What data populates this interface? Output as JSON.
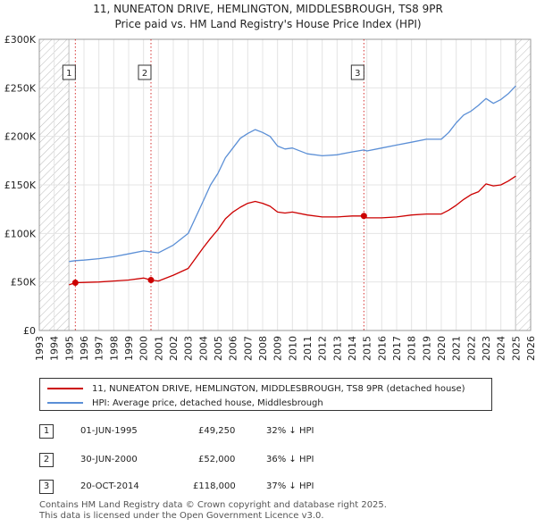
{
  "title_line1": "11, NUNEATON DRIVE, HEMLINGTON, MIDDLESBROUGH, TS8 9PR",
  "title_line2": "Price paid vs. HM Land Registry's House Price Index (HPI)",
  "colors": {
    "price": "#cc0000",
    "hpi": "#5b8fd6",
    "hatch": "#bbbbbb",
    "marker": "#cc0000"
  },
  "legend": {
    "price_label": "11, NUNEATON DRIVE, HEMLINGTON, MIDDLESBROUGH, TS8 9PR (detached house)",
    "hpi_label": "HPI: Average price, detached house, Middlesbrough"
  },
  "transactions": [
    {
      "num": "1",
      "date": "01-JUN-1995",
      "price": "£49,250",
      "hpi_diff": "32% ↓ HPI"
    },
    {
      "num": "2",
      "date": "30-JUN-2000",
      "price": "£52,000",
      "hpi_diff": "36% ↓ HPI"
    },
    {
      "num": "3",
      "date": "20-OCT-2014",
      "price": "£118,000",
      "hpi_diff": "37% ↓ HPI"
    }
  ],
  "footer": {
    "line1": "Contains HM Land Registry data © Crown copyright and database right 2025.",
    "line2": "This data is licensed under the Open Government Licence v3.0."
  },
  "chart_data": {
    "type": "line",
    "title": "11, NUNEATON DRIVE, HEMLINGTON, MIDDLESBROUGH, TS8 9PR",
    "subtitle": "Price paid vs. HM Land Registry's House Price Index (HPI)",
    "xlabel": "",
    "ylabel": "",
    "xlim": [
      1993,
      2026
    ],
    "ylim": [
      0,
      300000
    ],
    "x_ticks": [
      1993,
      1994,
      1995,
      1996,
      1997,
      1998,
      1999,
      2000,
      2001,
      2002,
      2003,
      2004,
      2005,
      2006,
      2007,
      2008,
      2009,
      2010,
      2011,
      2012,
      2013,
      2014,
      2015,
      2016,
      2017,
      2018,
      2019,
      2020,
      2021,
      2022,
      2023,
      2024,
      2025,
      2026
    ],
    "y_ticks": [
      {
        "value": 0,
        "label": "£0"
      },
      {
        "value": 50000,
        "label": "£50K"
      },
      {
        "value": 100000,
        "label": "£100K"
      },
      {
        "value": 150000,
        "label": "£150K"
      },
      {
        "value": 200000,
        "label": "£200K"
      },
      {
        "value": 250000,
        "label": "£250K"
      },
      {
        "value": 300000,
        "label": "£300K"
      }
    ],
    "grid": true,
    "hatched_ranges": [
      [
        1993,
        1995.0
      ],
      [
        2025.0,
        2026
      ]
    ],
    "series": [
      {
        "name": "11, NUNEATON DRIVE, HEMLINGTON, MIDDLESBROUGH, TS8 9PR (detached house)",
        "x": [
          1995.0,
          1995.42,
          1996.0,
          1997.0,
          1998.0,
          1999.0,
          2000.0,
          2000.5,
          2001.0,
          2002.0,
          2003.0,
          2004.0,
          2004.5,
          2005.0,
          2005.5,
          2006.0,
          2006.5,
          2007.0,
          2007.5,
          2008.0,
          2008.5,
          2009.0,
          2009.5,
          2010.0,
          2011.0,
          2012.0,
          2013.0,
          2014.0,
          2014.8,
          2015.0,
          2016.0,
          2017.0,
          2018.0,
          2019.0,
          2020.0,
          2020.5,
          2021.0,
          2021.5,
          2022.0,
          2022.5,
          2023.0,
          2023.5,
          2024.0,
          2024.5,
          2025.0
        ],
        "y": [
          47000,
          49250,
          49500,
          50000,
          51000,
          52000,
          54000,
          52000,
          51000,
          57000,
          64000,
          85000,
          95000,
          104000,
          115000,
          122000,
          127000,
          131000,
          133000,
          131000,
          128000,
          122000,
          121000,
          122000,
          119000,
          117000,
          117000,
          118000,
          118000,
          116000,
          116000,
          117000,
          119000,
          120000,
          120000,
          124000,
          129000,
          135000,
          140000,
          143000,
          151000,
          149000,
          150000,
          154000,
          159000
        ]
      },
      {
        "name": "HPI: Average price, detached house, Middlesbrough",
        "x": [
          1995.0,
          1995.42,
          1996.0,
          1997.0,
          1998.0,
          1999.0,
          2000.0,
          2000.5,
          2001.0,
          2002.0,
          2003.0,
          2004.0,
          2004.5,
          2005.0,
          2005.5,
          2006.0,
          2006.5,
          2007.0,
          2007.5,
          2008.0,
          2008.5,
          2009.0,
          2009.5,
          2010.0,
          2011.0,
          2012.0,
          2013.0,
          2014.0,
          2014.8,
          2015.0,
          2016.0,
          2017.0,
          2018.0,
          2019.0,
          2020.0,
          2020.5,
          2021.0,
          2021.5,
          2022.0,
          2022.5,
          2023.0,
          2023.5,
          2024.0,
          2024.5,
          2025.0
        ],
        "y": [
          71000,
          72000,
          72500,
          74000,
          76000,
          79000,
          82000,
          81000,
          80000,
          88000,
          100000,
          133000,
          150000,
          162000,
          178000,
          188000,
          198000,
          203000,
          207000,
          204000,
          200000,
          190000,
          187000,
          188000,
          182000,
          180000,
          181000,
          184000,
          186000,
          185000,
          188000,
          191000,
          194000,
          197000,
          197000,
          204000,
          214000,
          222000,
          226000,
          232000,
          239000,
          234000,
          238000,
          244000,
          252000
        ]
      }
    ],
    "markers": [
      {
        "label": "1",
        "x": 1995.42,
        "y": 49250
      },
      {
        "label": "2",
        "x": 2000.5,
        "y": 52000
      },
      {
        "label": "3",
        "x": 2014.8,
        "y": 118000
      }
    ]
  }
}
